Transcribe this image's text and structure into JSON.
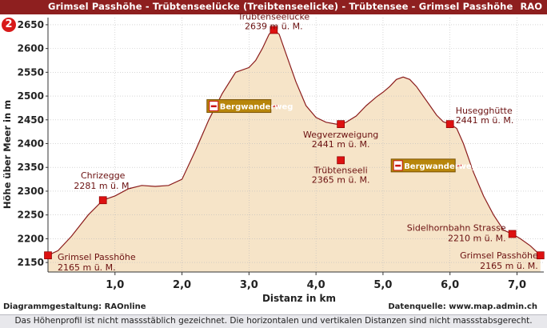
{
  "header": {
    "title": "Grimsel Passhöhe - Trübtenseelücke (Treibtenseelicke) - Trübtensee - Grimsel Passhöhe",
    "brand": "RAO",
    "badge": "2"
  },
  "chart_data": {
    "type": "area",
    "xlabel": "Distanz in km",
    "ylabel": "Höhe über Meer in m",
    "xlim": [
      0,
      7.4
    ],
    "ylim": [
      2130,
      2665
    ],
    "xticks": [
      "1,0",
      "2,0",
      "3,0",
      "4,0",
      "5,0",
      "6,0",
      "7,0"
    ],
    "xtick_values": [
      1,
      2,
      3,
      4,
      5,
      6,
      7
    ],
    "yticks": [
      2150,
      2200,
      2250,
      2300,
      2350,
      2400,
      2450,
      2500,
      2550,
      2600,
      2650
    ],
    "grid": true,
    "fill_color": "#f6e4c8",
    "line_color": "#8b1c1c",
    "marker_color": "#dd1111",
    "profile": {
      "x": [
        0,
        0.15,
        0.35,
        0.6,
        0.82,
        1.0,
        1.2,
        1.4,
        1.6,
        1.8,
        2.0,
        2.2,
        2.4,
        2.6,
        2.8,
        3.0,
        3.1,
        3.2,
        3.3,
        3.37,
        3.45,
        3.55,
        3.7,
        3.85,
        4.0,
        4.15,
        4.3,
        4.37,
        4.45,
        4.6,
        4.75,
        4.9,
        5.0,
        5.1,
        5.2,
        5.3,
        5.4,
        5.5,
        5.6,
        5.7,
        5.8,
        5.9,
        6.0,
        6.1,
        6.2,
        6.35,
        6.5,
        6.65,
        6.8,
        6.93,
        7.05,
        7.2,
        7.35
      ],
      "y": [
        2165,
        2175,
        2205,
        2250,
        2281,
        2290,
        2305,
        2312,
        2310,
        2312,
        2325,
        2385,
        2450,
        2505,
        2550,
        2560,
        2575,
        2600,
        2630,
        2639,
        2630,
        2590,
        2530,
        2480,
        2455,
        2445,
        2441,
        2441,
        2445,
        2458,
        2480,
        2498,
        2508,
        2520,
        2535,
        2540,
        2535,
        2520,
        2500,
        2480,
        2460,
        2446,
        2441,
        2432,
        2400,
        2340,
        2290,
        2250,
        2218,
        2210,
        2200,
        2185,
        2165
      ]
    },
    "waypoints": [
      {
        "name": "Grimsel Passhöhe",
        "elevation": "2165 m ü. M.",
        "x": 0.0,
        "y": 2165
      },
      {
        "name": "Chrizegge",
        "elevation": "2281 m ü. M.",
        "x": 0.82,
        "y": 2281
      },
      {
        "name": "Trübtenseelücke",
        "elevation": "2639 m ü. M.",
        "x": 3.37,
        "y": 2639
      },
      {
        "name": "Wegverzweigung",
        "elevation": "2441 m ü. M.",
        "x": 4.37,
        "y": 2441
      },
      {
        "name": "Trübtenseeli",
        "elevation": "2365 m ü. M.",
        "x": 4.37,
        "y": 2365
      },
      {
        "name": "Husegghütte",
        "elevation": "2441 m ü. M.",
        "x": 6.0,
        "y": 2441
      },
      {
        "name": "Sidelhornbahn Strasse",
        "elevation": "2210 m ü. M.",
        "x": 6.93,
        "y": 2210
      },
      {
        "name": "Grimsel Passhöhe",
        "elevation": "2165 m ü. M.",
        "x": 7.35,
        "y": 2165
      }
    ],
    "signs": [
      {
        "label": "Bergwanderweg",
        "x": 2.85,
        "y": 2479
      },
      {
        "label": "Bergwanderweg",
        "x": 5.6,
        "y": 2354
      }
    ]
  },
  "credits": {
    "left": "Diagrammgestaltung: RAOnline",
    "right": "Datenquelle: www.map.admin.ch"
  },
  "footer": {
    "text": "Das Höhenprofil ist nicht massstäblich gezeichnet. Die horizontalen und vertikalen Distanzen sind nicht massstabsgerecht."
  }
}
